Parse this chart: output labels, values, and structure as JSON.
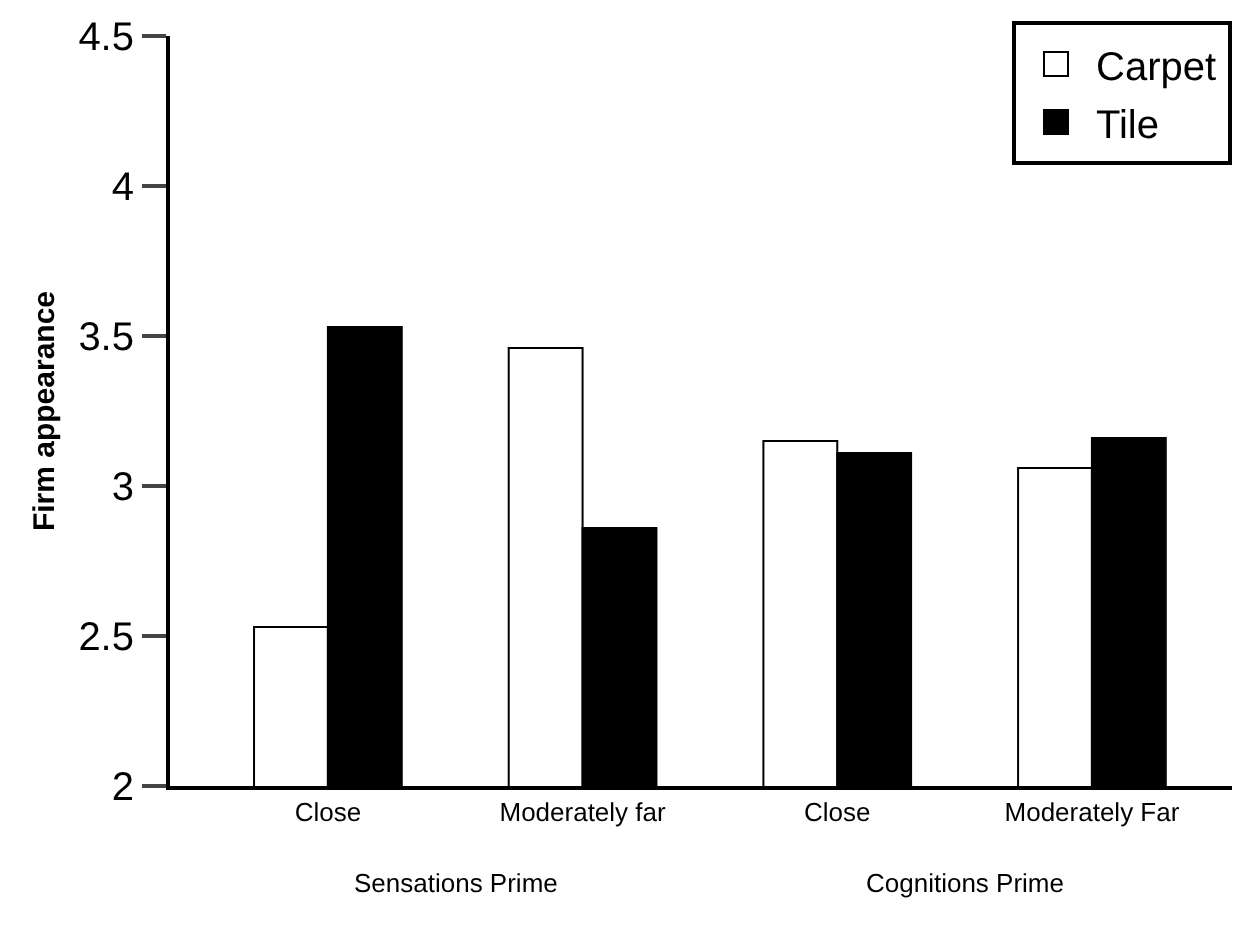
{
  "chart_data": {
    "type": "bar",
    "ylabel": "Firm appearance",
    "categories": [
      "Close",
      "Moderately far",
      "Close",
      "Moderately Far"
    ],
    "series": [
      {
        "name": "Carpet",
        "color": "#ffffff",
        "values": [
          2.53,
          3.46,
          3.15,
          3.06
        ]
      },
      {
        "name": "Tile",
        "color": "#000000",
        "values": [
          3.53,
          2.86,
          3.11,
          3.16
        ]
      }
    ],
    "ylim": [
      2,
      4.5
    ],
    "yticks": [
      2,
      2.5,
      3,
      3.5,
      4,
      4.5
    ],
    "legend": "top right",
    "annotations": [
      "Sensations Prime",
      "Cognitions Prime"
    ]
  }
}
